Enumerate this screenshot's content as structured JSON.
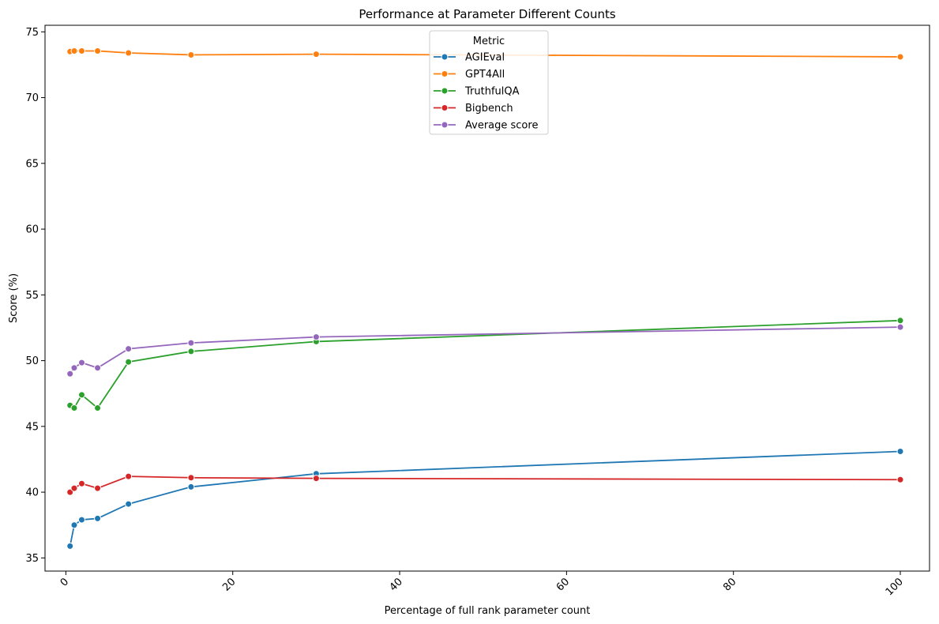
{
  "chart_data": {
    "type": "line",
    "title": "Performance at Parameter Different Counts",
    "xlabel": "Percentage of full rank parameter count",
    "ylabel": "Score (%)",
    "xlim": [
      -2.5,
      103.5
    ],
    "ylim": [
      34,
      75.5
    ],
    "xticks": [
      0,
      20,
      40,
      60,
      80,
      100
    ],
    "xtick_labels": [
      "0",
      "20",
      "40",
      "60",
      "80",
      "100"
    ],
    "xtick_rotation": 45,
    "yticks": [
      35,
      40,
      45,
      50,
      55,
      60,
      65,
      70,
      75
    ],
    "ytick_labels": [
      "35",
      "40",
      "45",
      "50",
      "55",
      "60",
      "65",
      "70",
      "75"
    ],
    "grid": false,
    "legend": {
      "title": "Metric",
      "placement": "upper center"
    },
    "x": [
      0.5,
      1,
      1.9,
      3.8,
      7.5,
      15,
      30,
      100
    ],
    "series": [
      {
        "name": "AGIEval",
        "color": "#1f77b4",
        "values": [
          35.9,
          37.5,
          37.9,
          38.0,
          39.1,
          40.4,
          41.4,
          43.1
        ]
      },
      {
        "name": "GPT4All",
        "color": "#ff7f0e",
        "values": [
          73.5,
          73.55,
          73.55,
          73.55,
          73.4,
          73.25,
          73.3,
          73.1
        ]
      },
      {
        "name": "TruthfulQA",
        "color": "#2ca02c",
        "values": [
          46.6,
          46.4,
          47.4,
          46.4,
          49.9,
          50.7,
          51.45,
          53.05
        ]
      },
      {
        "name": "Bigbench",
        "color": "#d62728",
        "values": [
          40.0,
          40.3,
          40.65,
          40.3,
          41.2,
          41.1,
          41.05,
          40.95
        ]
      },
      {
        "name": "Average score",
        "color": "#9467bd",
        "values": [
          49.0,
          49.45,
          49.85,
          49.45,
          50.9,
          51.35,
          51.8,
          52.55
        ]
      }
    ]
  }
}
